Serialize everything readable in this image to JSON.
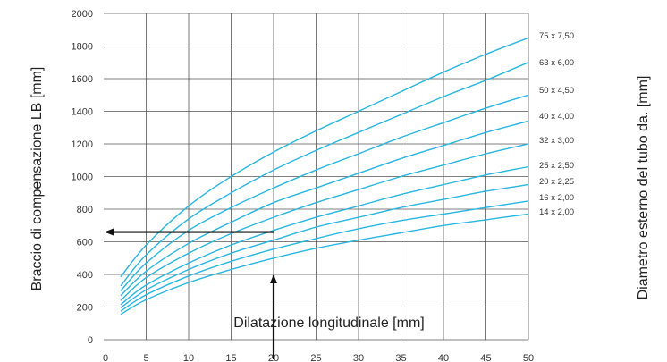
{
  "chart_data": {
    "type": "line",
    "title": "",
    "xlabel": "Dilatazione longitudinale [mm]",
    "ylabel": "Braccio di compensazione LB [mm]",
    "y2label": "Diametro esterno del tubo da. [mm]",
    "xlim": [
      0,
      50
    ],
    "ylim": [
      0,
      2000
    ],
    "x_ticks": [
      "0",
      "5",
      "10",
      "15",
      "20",
      "25",
      "30",
      "35",
      "40",
      "45",
      "50"
    ],
    "y_ticks": [
      "0",
      "200",
      "400",
      "600",
      "800",
      "1000",
      "1200",
      "1400",
      "1600",
      "1800",
      "2000"
    ],
    "grid": true,
    "legend": "right",
    "line_color": "#29b6e0",
    "arrow_color": "#111111",
    "x": [
      2,
      5,
      10,
      15,
      20,
      25,
      30,
      35,
      40,
      45,
      50
    ],
    "series": [
      {
        "name": "75 x 7,50",
        "values": [
          385,
          580,
          820,
          1000,
          1150,
          1280,
          1400,
          1520,
          1640,
          1750,
          1850
        ]
      },
      {
        "name": "63 x 6,00",
        "values": [
          330,
          520,
          740,
          900,
          1040,
          1160,
          1270,
          1380,
          1490,
          1590,
          1700
        ]
      },
      {
        "name": "50 x 4,50",
        "values": [
          300,
          470,
          670,
          810,
          930,
          1040,
          1140,
          1240,
          1330,
          1420,
          1500
        ]
      },
      {
        "name": "40 x 4,00",
        "values": [
          270,
          420,
          590,
          720,
          840,
          930,
          1020,
          1110,
          1190,
          1270,
          1340
        ]
      },
      {
        "name": "32 x 3,00",
        "values": [
          240,
          380,
          530,
          650,
          750,
          840,
          920,
          1000,
          1070,
          1140,
          1200
        ]
      },
      {
        "name": "25 x 2,50",
        "values": [
          215,
          335,
          470,
          580,
          670,
          750,
          820,
          890,
          950,
          1010,
          1060
        ]
      },
      {
        "name": "20 x 2,25",
        "values": [
          195,
          305,
          430,
          530,
          610,
          690,
          750,
          810,
          860,
          910,
          950
        ]
      },
      {
        "name": "16 x 2,00",
        "values": [
          175,
          275,
          390,
          480,
          555,
          620,
          680,
          730,
          770,
          810,
          850
        ]
      },
      {
        "name": "14 x 2,00",
        "values": [
          155,
          245,
          350,
          430,
          500,
          560,
          610,
          655,
          700,
          735,
          770
        ]
      }
    ],
    "annotation": {
      "x": 20,
      "y": 660
    }
  }
}
